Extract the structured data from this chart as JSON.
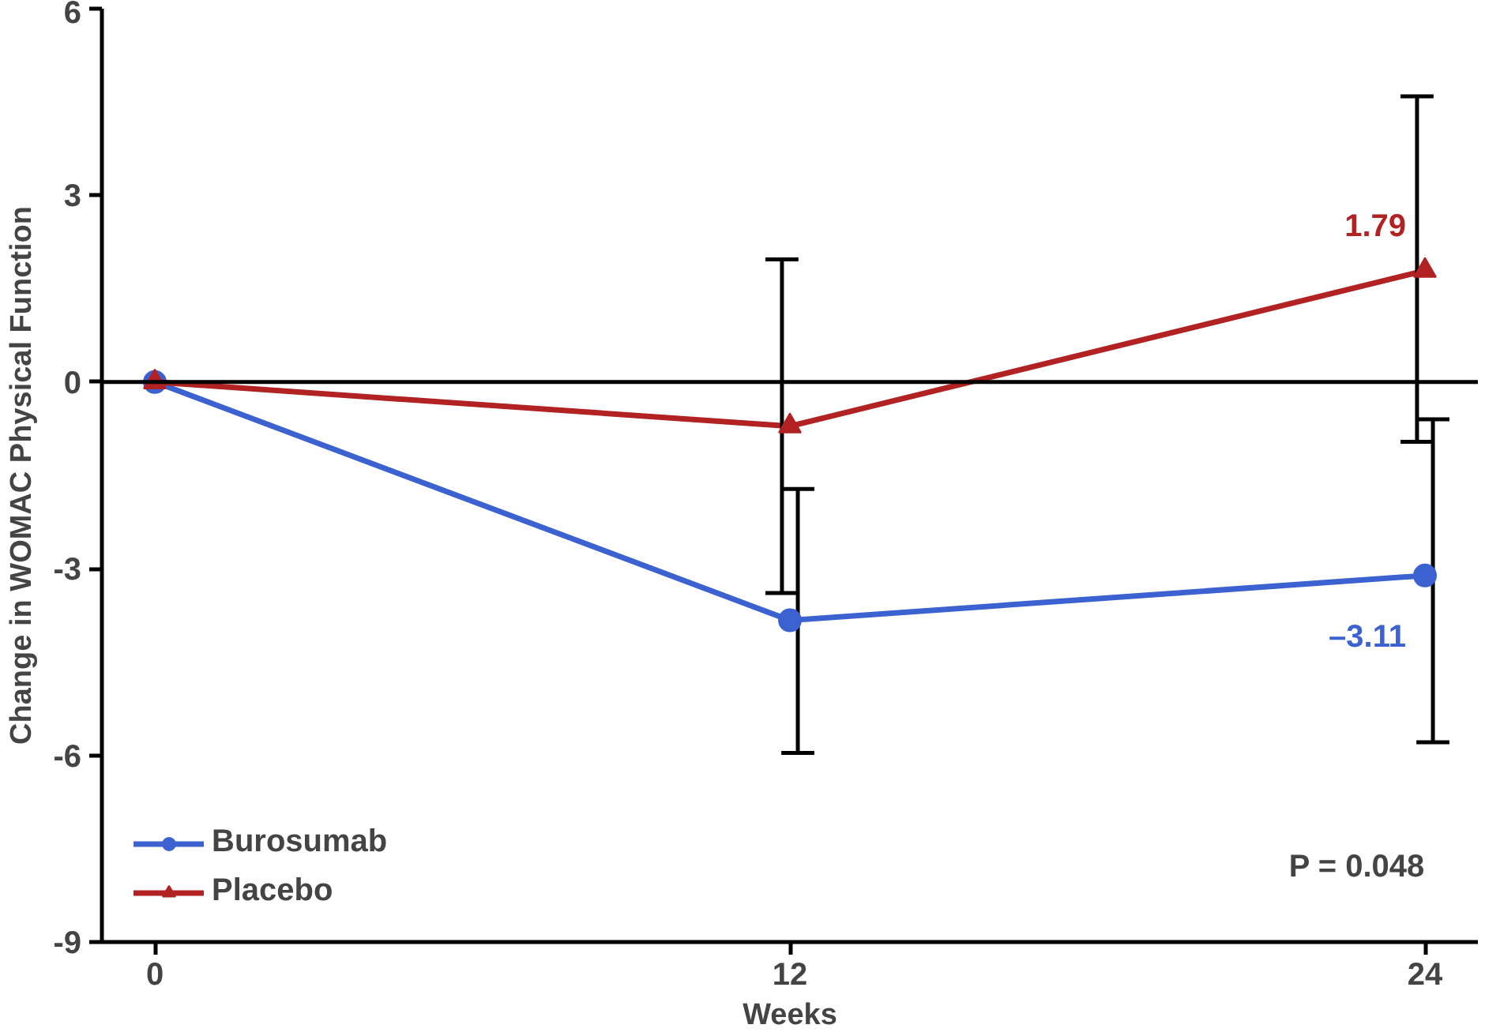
{
  "chart_data": {
    "type": "line",
    "xlabel": "Weeks",
    "ylabel": "Change in WOMAC Physical Function",
    "x": [
      0,
      12,
      24
    ],
    "xlim": [
      -1,
      25
    ],
    "xticks": [
      0,
      12,
      24
    ],
    "ylim": [
      -9,
      6
    ],
    "yticks": [
      -9,
      -6,
      -3,
      0,
      3,
      6
    ],
    "series": [
      {
        "name": "Burosumab",
        "color": "#3b62d0",
        "marker": "circle",
        "values": [
          0,
          -3.83,
          -3.11
        ],
        "errors": [
          null,
          [
            -5.96,
            -1.72
          ],
          [
            -5.79,
            -0.6
          ]
        ],
        "value_labels": [
          null,
          null,
          "–3.11"
        ]
      },
      {
        "name": "Placebo",
        "color": "#b22222",
        "marker": "triangle",
        "values": [
          0,
          -0.71,
          1.79
        ],
        "errors": [
          null,
          [
            -3.39,
            1.97
          ],
          [
            -0.96,
            4.59
          ]
        ],
        "value_labels": [
          null,
          null,
          "1.79"
        ]
      }
    ],
    "ref_lines": [
      {
        "axis": "y",
        "value": 0,
        "color": "#000000"
      }
    ],
    "annotations": [
      "P = 0.048"
    ],
    "legend": "bottom left",
    "grid": false
  }
}
